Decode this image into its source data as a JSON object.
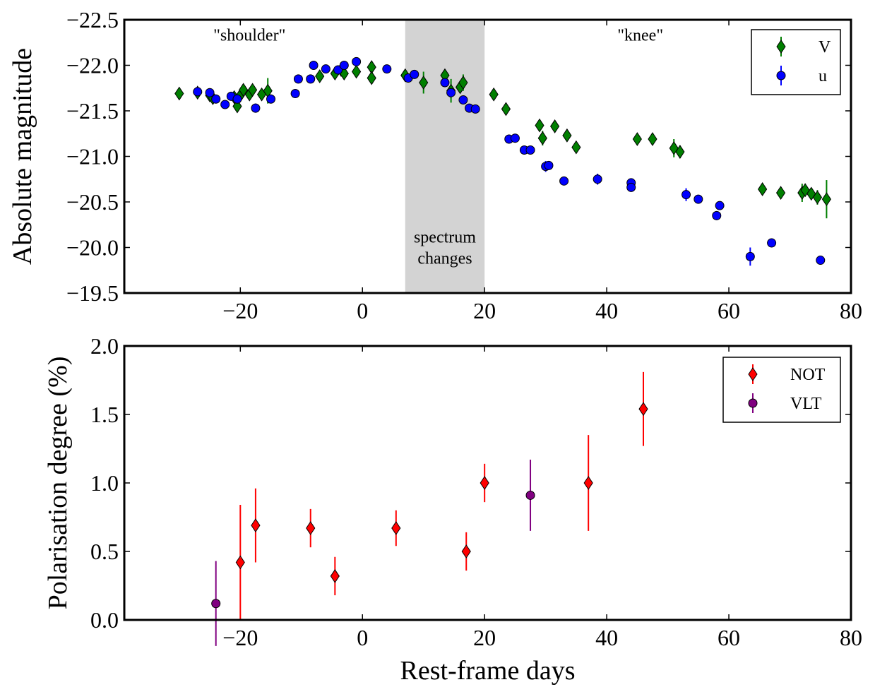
{
  "chart_data": [
    {
      "type": "scatter",
      "xlabel": "",
      "ylabel": "Absolute magnitude",
      "xlim": [
        -39,
        80
      ],
      "ylim": [
        -19.5,
        -22.5
      ],
      "y_inverted": true,
      "xticks": [
        -20,
        0,
        20,
        40,
        60,
        80
      ],
      "yticks": [
        -22.5,
        -22.0,
        -21.5,
        -21.0,
        -20.5,
        -20.0,
        -19.5
      ],
      "xtick_labels": [
        "−20",
        "0",
        "20",
        "40",
        "60",
        "80"
      ],
      "ytick_labels": [
        "−22.5",
        "−22.0",
        "−21.5",
        "−21.0",
        "−20.5",
        "−20.0",
        "−19.5"
      ],
      "legend_placement": "top-right",
      "shaded_region": {
        "x0": 7,
        "x1": 20,
        "color": "#d3d3d3",
        "label_lines": [
          "spectrum",
          "changes"
        ]
      },
      "annotations": [
        {
          "text": "\"shoulder\"",
          "x": -18.5,
          "y": -22.27
        },
        {
          "text": "\"knee\"",
          "x": 45.5,
          "y": -22.27
        }
      ],
      "series": [
        {
          "name": "V",
          "marker": "diamond",
          "color": "#007f00",
          "points": [
            [
              -30,
              -21.69,
              0.03
            ],
            [
              -27,
              -21.7,
              0.03
            ],
            [
              -25,
              -21.67,
              0.04
            ],
            [
              -24.5,
              -21.64,
              0.03
            ],
            [
              -21,
              -21.65,
              0.03
            ],
            [
              -20.5,
              -21.55,
              0.05
            ],
            [
              -20,
              -21.67,
              0.04
            ],
            [
              -19.5,
              -21.73,
              0.04
            ],
            [
              -18.5,
              -21.68,
              0.04
            ],
            [
              -18,
              -21.73,
              0.06
            ],
            [
              -16.5,
              -21.68,
              0.06
            ],
            [
              -15.5,
              -21.72,
              0.14
            ],
            [
              -7,
              -21.88,
              0.04
            ],
            [
              -4.5,
              -21.91,
              0.04
            ],
            [
              -3.5,
              -21.95,
              0.04
            ],
            [
              -3,
              -21.91,
              0.05
            ],
            [
              -1,
              -21.93,
              0.04
            ],
            [
              1.5,
              -21.98,
              0.05
            ],
            [
              1.5,
              -21.86,
              0.05
            ],
            [
              7,
              -21.89,
              0.04
            ],
            [
              10,
              -21.81,
              0.12
            ],
            [
              13.5,
              -21.89,
              0.06
            ],
            [
              14.5,
              -21.72,
              0.13
            ],
            [
              16,
              -21.76,
              0.06
            ],
            [
              16.5,
              -21.81,
              0.09
            ],
            [
              21.5,
              -21.68,
              0.04
            ],
            [
              23.5,
              -21.52,
              0.04
            ],
            [
              29,
              -21.34,
              0.05
            ],
            [
              29.5,
              -21.2,
              0.08
            ],
            [
              31.5,
              -21.33,
              0.06
            ],
            [
              33.5,
              -21.23,
              0.05
            ],
            [
              35,
              -21.1,
              0.06
            ],
            [
              45,
              -21.19,
              0.06
            ],
            [
              47.5,
              -21.19,
              0.05
            ],
            [
              51,
              -21.09,
              0.1
            ],
            [
              52,
              -21.05,
              0.07
            ],
            [
              65.5,
              -20.64,
              0.06
            ],
            [
              68.5,
              -20.6,
              0.05
            ],
            [
              72,
              -20.6,
              0.1
            ],
            [
              72.5,
              -20.63,
              0.07
            ],
            [
              73.5,
              -20.59,
              0.05
            ],
            [
              74.5,
              -20.55,
              0.08
            ],
            [
              76,
              -20.53,
              0.21
            ]
          ]
        },
        {
          "name": "u",
          "marker": "circle",
          "color": "#0000ff",
          "points": [
            [
              -27,
              -21.71,
              0.03
            ],
            [
              -25,
              -21.7,
              0.03
            ],
            [
              -24,
              -21.63,
              0.03
            ],
            [
              -22.5,
              -21.57,
              0.03
            ],
            [
              -21.5,
              -21.66,
              0.03
            ],
            [
              -20.5,
              -21.63,
              0.03
            ],
            [
              -17.5,
              -21.53,
              0.05
            ],
            [
              -15,
              -21.63,
              0.03
            ],
            [
              -11,
              -21.69,
              0.04
            ],
            [
              -10.5,
              -21.85,
              0.03
            ],
            [
              -8.5,
              -21.85,
              0.03
            ],
            [
              -8,
              -22.0,
              0.04
            ],
            [
              -6,
              -21.96,
              0.04
            ],
            [
              -4,
              -21.95,
              0.03
            ],
            [
              -3,
              -22.0,
              0.04
            ],
            [
              -1,
              -22.04,
              0.04
            ],
            [
              4,
              -21.96,
              0.03
            ],
            [
              7.5,
              -21.86,
              0.03
            ],
            [
              8.5,
              -21.9,
              0.03
            ],
            [
              13.5,
              -21.81,
              0.03
            ],
            [
              14.5,
              -21.7,
              0.03
            ],
            [
              16.5,
              -21.62,
              0.03
            ],
            [
              17.5,
              -21.53,
              0.03
            ],
            [
              18.5,
              -21.52,
              0.03
            ],
            [
              24,
              -21.19,
              0.04
            ],
            [
              25,
              -21.2,
              0.04
            ],
            [
              26.5,
              -21.07,
              0.03
            ],
            [
              27.5,
              -21.07,
              0.03
            ],
            [
              30,
              -20.89,
              0.06
            ],
            [
              30.5,
              -20.9,
              0.04
            ],
            [
              33,
              -20.73,
              0.03
            ],
            [
              38.5,
              -20.75,
              0.06
            ],
            [
              44,
              -20.71,
              0.04
            ],
            [
              44,
              -20.66,
              0.04
            ],
            [
              53,
              -20.58,
              0.07
            ],
            [
              55,
              -20.53,
              0.03
            ],
            [
              58,
              -20.35,
              0.05
            ],
            [
              58.5,
              -20.46,
              0.04
            ],
            [
              63.5,
              -19.9,
              0.1
            ],
            [
              67,
              -20.05,
              0.03
            ],
            [
              75,
              -19.86,
              0.03
            ]
          ]
        }
      ]
    },
    {
      "type": "scatter",
      "xlabel": "Rest-frame days",
      "ylabel": "Polarisation degree (%)",
      "xlim": [
        -39,
        80
      ],
      "ylim": [
        0.0,
        2.0
      ],
      "xticks": [
        -20,
        0,
        20,
        40,
        60,
        80
      ],
      "yticks": [
        0.0,
        0.5,
        1.0,
        1.5,
        2.0
      ],
      "xtick_labels": [
        "−20",
        "0",
        "20",
        "40",
        "60",
        "80"
      ],
      "ytick_labels": [
        "0.0",
        "0.5",
        "1.0",
        "1.5",
        "2.0"
      ],
      "legend_placement": "top-right",
      "series": [
        {
          "name": "NOT",
          "marker": "diamond",
          "color": "#ff0000",
          "points": [
            [
              -20,
              0.42,
              0.42
            ],
            [
              -17.5,
              0.69,
              0.27
            ],
            [
              -8.5,
              0.67,
              0.14
            ],
            [
              -4.5,
              0.32,
              0.14
            ],
            [
              5.5,
              0.67,
              0.13
            ],
            [
              17,
              0.5,
              0.14
            ],
            [
              20,
              1.0,
              0.14
            ],
            [
              37,
              1.0,
              0.35
            ],
            [
              46,
              1.54,
              0.27
            ]
          ]
        },
        {
          "name": "VLT",
          "marker": "circle",
          "color": "#800080",
          "points": [
            [
              -24,
              0.12,
              0.31
            ],
            [
              27.5,
              0.91,
              0.26
            ]
          ]
        }
      ]
    }
  ]
}
